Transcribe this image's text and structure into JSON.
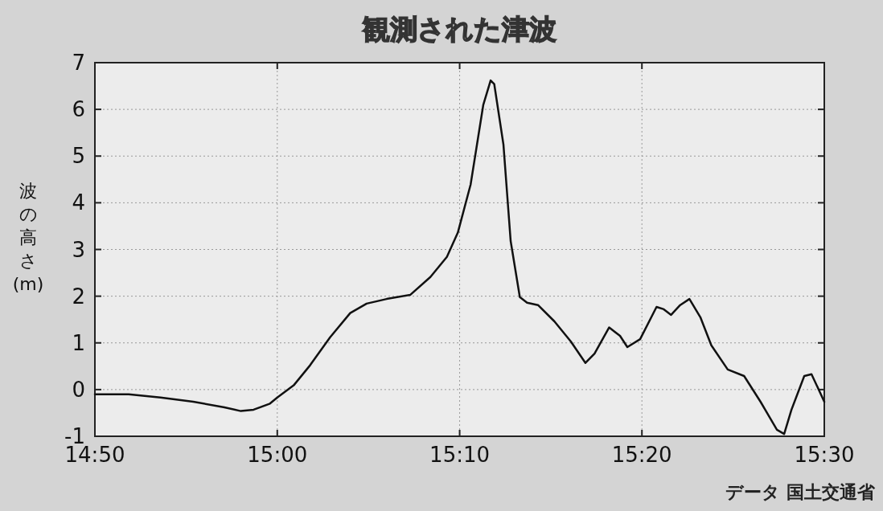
{
  "chart_data": {
    "type": "line",
    "title": "観測された津波",
    "ylabel": "波の高さ(m)",
    "annotations": [
      "データ 国土交通省"
    ],
    "x": [
      14.8333,
      14.8642,
      14.8933,
      14.9233,
      14.9517,
      14.9667,
      14.9783,
      14.9933,
      15.0,
      15.015,
      15.03,
      15.0483,
      15.0667,
      15.0817,
      15.1,
      15.1217,
      15.14,
      15.155,
      15.165,
      15.1767,
      15.1883,
      15.195,
      15.1983,
      15.2067,
      15.2133,
      15.2217,
      15.2283,
      15.2383,
      15.2533,
      15.2683,
      15.2817,
      15.29,
      15.3033,
      15.3133,
      15.32,
      15.3317,
      15.3467,
      15.3533,
      15.36,
      15.3683,
      15.3767,
      15.3867,
      15.3967,
      15.4117,
      15.4267,
      15.4417,
      15.4567,
      15.4633,
      15.47,
      15.4817,
      15.4883,
      15.5
    ],
    "series": [
      {
        "color": "#111111",
        "values": [
          -0.1,
          -0.1,
          -0.17,
          -0.26,
          -0.38,
          -0.46,
          -0.43,
          -0.3,
          -0.17,
          0.09,
          0.52,
          1.12,
          1.64,
          1.84,
          1.94,
          2.03,
          2.41,
          2.84,
          3.36,
          4.39,
          6.1,
          6.62,
          6.54,
          5.25,
          3.18,
          1.98,
          1.86,
          1.81,
          1.46,
          1.03,
          0.57,
          0.77,
          1.33,
          1.15,
          0.91,
          1.08,
          1.77,
          1.72,
          1.6,
          1.81,
          1.94,
          1.55,
          0.95,
          0.43,
          0.29,
          -0.26,
          -0.86,
          -0.95,
          -0.43,
          0.29,
          0.33,
          -0.26
        ]
      }
    ],
    "xlim": [
      14.8333,
      15.5
    ],
    "xticks": [
      {
        "value": 14.8333,
        "label": "14:50"
      },
      {
        "value": 15,
        "label": "15:00"
      },
      {
        "value": 15.1667,
        "label": "15:10"
      },
      {
        "value": 15.3333,
        "label": "15:20"
      },
      {
        "value": 15.5,
        "label": "15:30"
      }
    ],
    "ylim": [
      -1,
      7
    ],
    "yticks": [
      -1,
      0,
      1,
      2,
      3,
      4,
      5,
      6,
      7
    ],
    "grid": true,
    "line_style": "solid"
  }
}
